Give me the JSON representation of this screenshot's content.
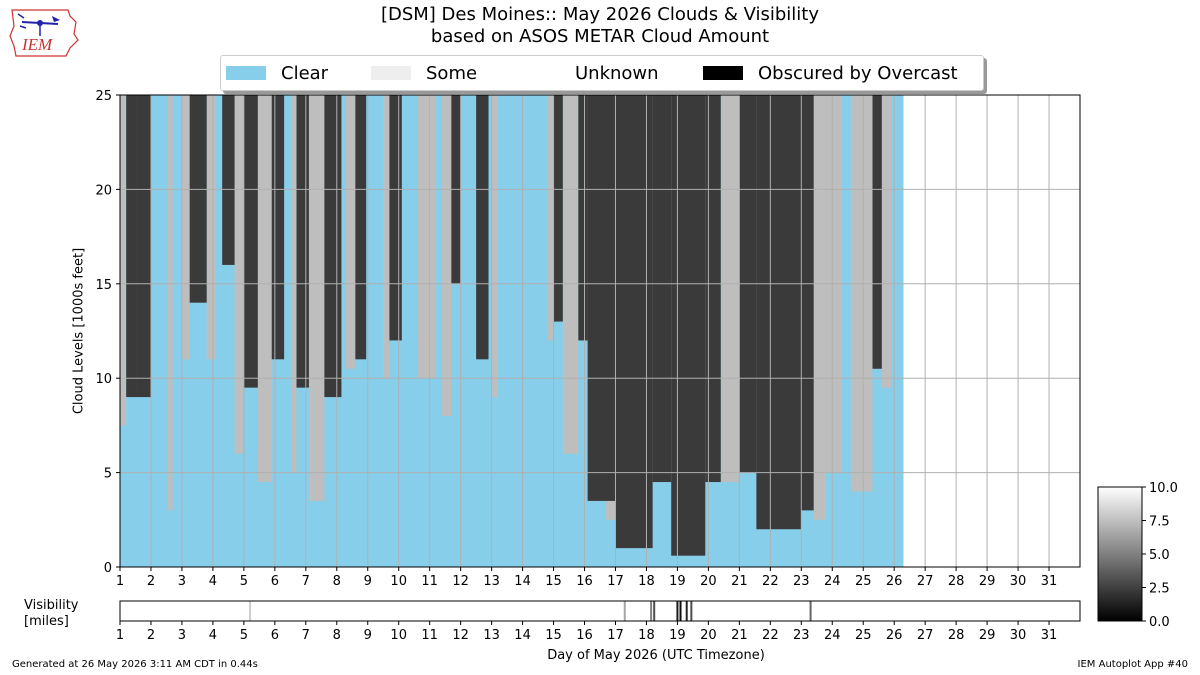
{
  "title_line1": "[DSM] Des Moines:: May 2026 Clouds & Visibility",
  "title_line2": "based on ASOS METAR Cloud Amount",
  "logo_text": "IEM",
  "legend": [
    {
      "label": "Clear",
      "color": "#87ceeb"
    },
    {
      "label": "Some",
      "color": "#eeeeee"
    },
    {
      "label": "Unknown",
      "color": "#ffffff"
    },
    {
      "label": "Obscured by Overcast",
      "color": "#000000"
    }
  ],
  "ylabel": "Cloud Levels [1000s feet]",
  "xlabel": "Day of May 2026 (UTC Timezone)",
  "vis_label_line1": "Visibility",
  "vis_label_line2": "[miles]",
  "footer_left": "Generated at 26 May 2026 3:11 AM CDT in 0.44s",
  "footer_right": "IEM Autoplot App #40",
  "chart_data": [
    {
      "type": "area",
      "title": "[DSM] Des Moines:: May 2026 Clouds & Visibility",
      "xlabel": "Day of May 2026 (UTC Timezone)",
      "ylabel": "Cloud Levels [1000s feet]",
      "xlim": [
        1,
        32
      ],
      "ylim": [
        0,
        25
      ],
      "xticks": [
        1,
        2,
        3,
        4,
        5,
        6,
        7,
        8,
        9,
        10,
        11,
        12,
        13,
        14,
        15,
        16,
        17,
        18,
        19,
        20,
        21,
        22,
        23,
        24,
        25,
        26,
        27,
        28,
        29,
        30,
        31
      ],
      "yticks": [
        0,
        5,
        10,
        15,
        20,
        25
      ],
      "grid": true,
      "legend_position": "top",
      "data_end_day": 26.3,
      "series": [
        {
          "name": "Overcast",
          "color": "#3a3a3a",
          "intervals": [
            {
              "start": 1.2,
              "end": 1.55,
              "base": 9.0
            },
            {
              "start": 1.55,
              "end": 2.0,
              "base": 9.0
            },
            {
              "start": 3.25,
              "end": 3.8,
              "base": 14.0
            },
            {
              "start": 4.3,
              "end": 4.7,
              "base": 16.0
            },
            {
              "start": 5.0,
              "end": 5.45,
              "base": 9.5
            },
            {
              "start": 5.9,
              "end": 6.3,
              "base": 11.0
            },
            {
              "start": 6.7,
              "end": 7.1,
              "base": 9.5
            },
            {
              "start": 7.6,
              "end": 8.15,
              "base": 9.0
            },
            {
              "start": 8.6,
              "end": 8.95,
              "base": 11.0
            },
            {
              "start": 9.7,
              "end": 10.1,
              "base": 12.0
            },
            {
              "start": 11.7,
              "end": 12.0,
              "base": 15.0
            },
            {
              "start": 12.5,
              "end": 12.9,
              "base": 11.0
            },
            {
              "start": 15.0,
              "end": 15.3,
              "base": 13.0
            },
            {
              "start": 15.8,
              "end": 16.1,
              "base": 12.0
            },
            {
              "start": 16.1,
              "end": 17.0,
              "base": 3.5
            },
            {
              "start": 17.0,
              "end": 18.2,
              "base": 1.0
            },
            {
              "start": 18.2,
              "end": 18.8,
              "base": 4.5
            },
            {
              "start": 18.8,
              "end": 19.9,
              "base": 0.6
            },
            {
              "start": 19.9,
              "end": 20.4,
              "base": 4.5
            },
            {
              "start": 21.0,
              "end": 21.55,
              "base": 5.0
            },
            {
              "start": 21.55,
              "end": 23.0,
              "base": 2.0
            },
            {
              "start": 23.0,
              "end": 23.4,
              "base": 3.0
            },
            {
              "start": 25.3,
              "end": 25.6,
              "base": 10.5
            }
          ]
        },
        {
          "name": "Some",
          "color": "#bebebe",
          "intervals": [
            {
              "start": 1.0,
              "end": 1.2,
              "base": 7.5
            },
            {
              "start": 2.55,
              "end": 2.7,
              "base": 3.0
            },
            {
              "start": 3.0,
              "end": 3.25,
              "base": 11.0
            },
            {
              "start": 3.8,
              "end": 4.1,
              "base": 11.0
            },
            {
              "start": 4.7,
              "end": 5.0,
              "base": 6.0
            },
            {
              "start": 5.45,
              "end": 5.9,
              "base": 4.5
            },
            {
              "start": 6.55,
              "end": 6.7,
              "base": 5.0
            },
            {
              "start": 7.1,
              "end": 7.6,
              "base": 3.5
            },
            {
              "start": 8.3,
              "end": 8.6,
              "base": 10.5
            },
            {
              "start": 9.5,
              "end": 9.7,
              "base": 10.0
            },
            {
              "start": 10.6,
              "end": 11.2,
              "base": 10.0
            },
            {
              "start": 11.4,
              "end": 11.7,
              "base": 8.0
            },
            {
              "start": 13.0,
              "end": 13.2,
              "base": 9.0
            },
            {
              "start": 14.8,
              "end": 15.0,
              "base": 12.0
            },
            {
              "start": 15.3,
              "end": 15.8,
              "base": 6.0
            },
            {
              "start": 16.7,
              "end": 17.1,
              "base": 2.5
            },
            {
              "start": 20.4,
              "end": 21.0,
              "base": 4.5
            },
            {
              "start": 23.4,
              "end": 23.8,
              "base": 2.5
            },
            {
              "start": 23.8,
              "end": 24.3,
              "base": 5.0
            },
            {
              "start": 24.6,
              "end": 25.3,
              "base": 4.0
            },
            {
              "start": 25.6,
              "end": 25.9,
              "base": 9.5
            }
          ]
        }
      ]
    },
    {
      "type": "heatmap",
      "title": "",
      "ylabel": "Visibility [miles]",
      "xlim": [
        1,
        32
      ],
      "colorbar_ticks": [
        0.0,
        2.5,
        5.0,
        7.5,
        10.0
      ],
      "colorbar_range": [
        0,
        10
      ],
      "values": [
        {
          "day": 5.2,
          "vis": 8.0
        },
        {
          "day": 17.3,
          "vis": 6.5
        },
        {
          "day": 18.15,
          "vis": 5.0
        },
        {
          "day": 18.25,
          "vis": 3.0
        },
        {
          "day": 19.0,
          "vis": 1.0
        },
        {
          "day": 19.1,
          "vis": 0.5
        },
        {
          "day": 19.3,
          "vis": 1.5
        },
        {
          "day": 19.45,
          "vis": 3.0
        },
        {
          "day": 23.3,
          "vis": 4.0
        }
      ],
      "default_vis": 10.0
    }
  ]
}
